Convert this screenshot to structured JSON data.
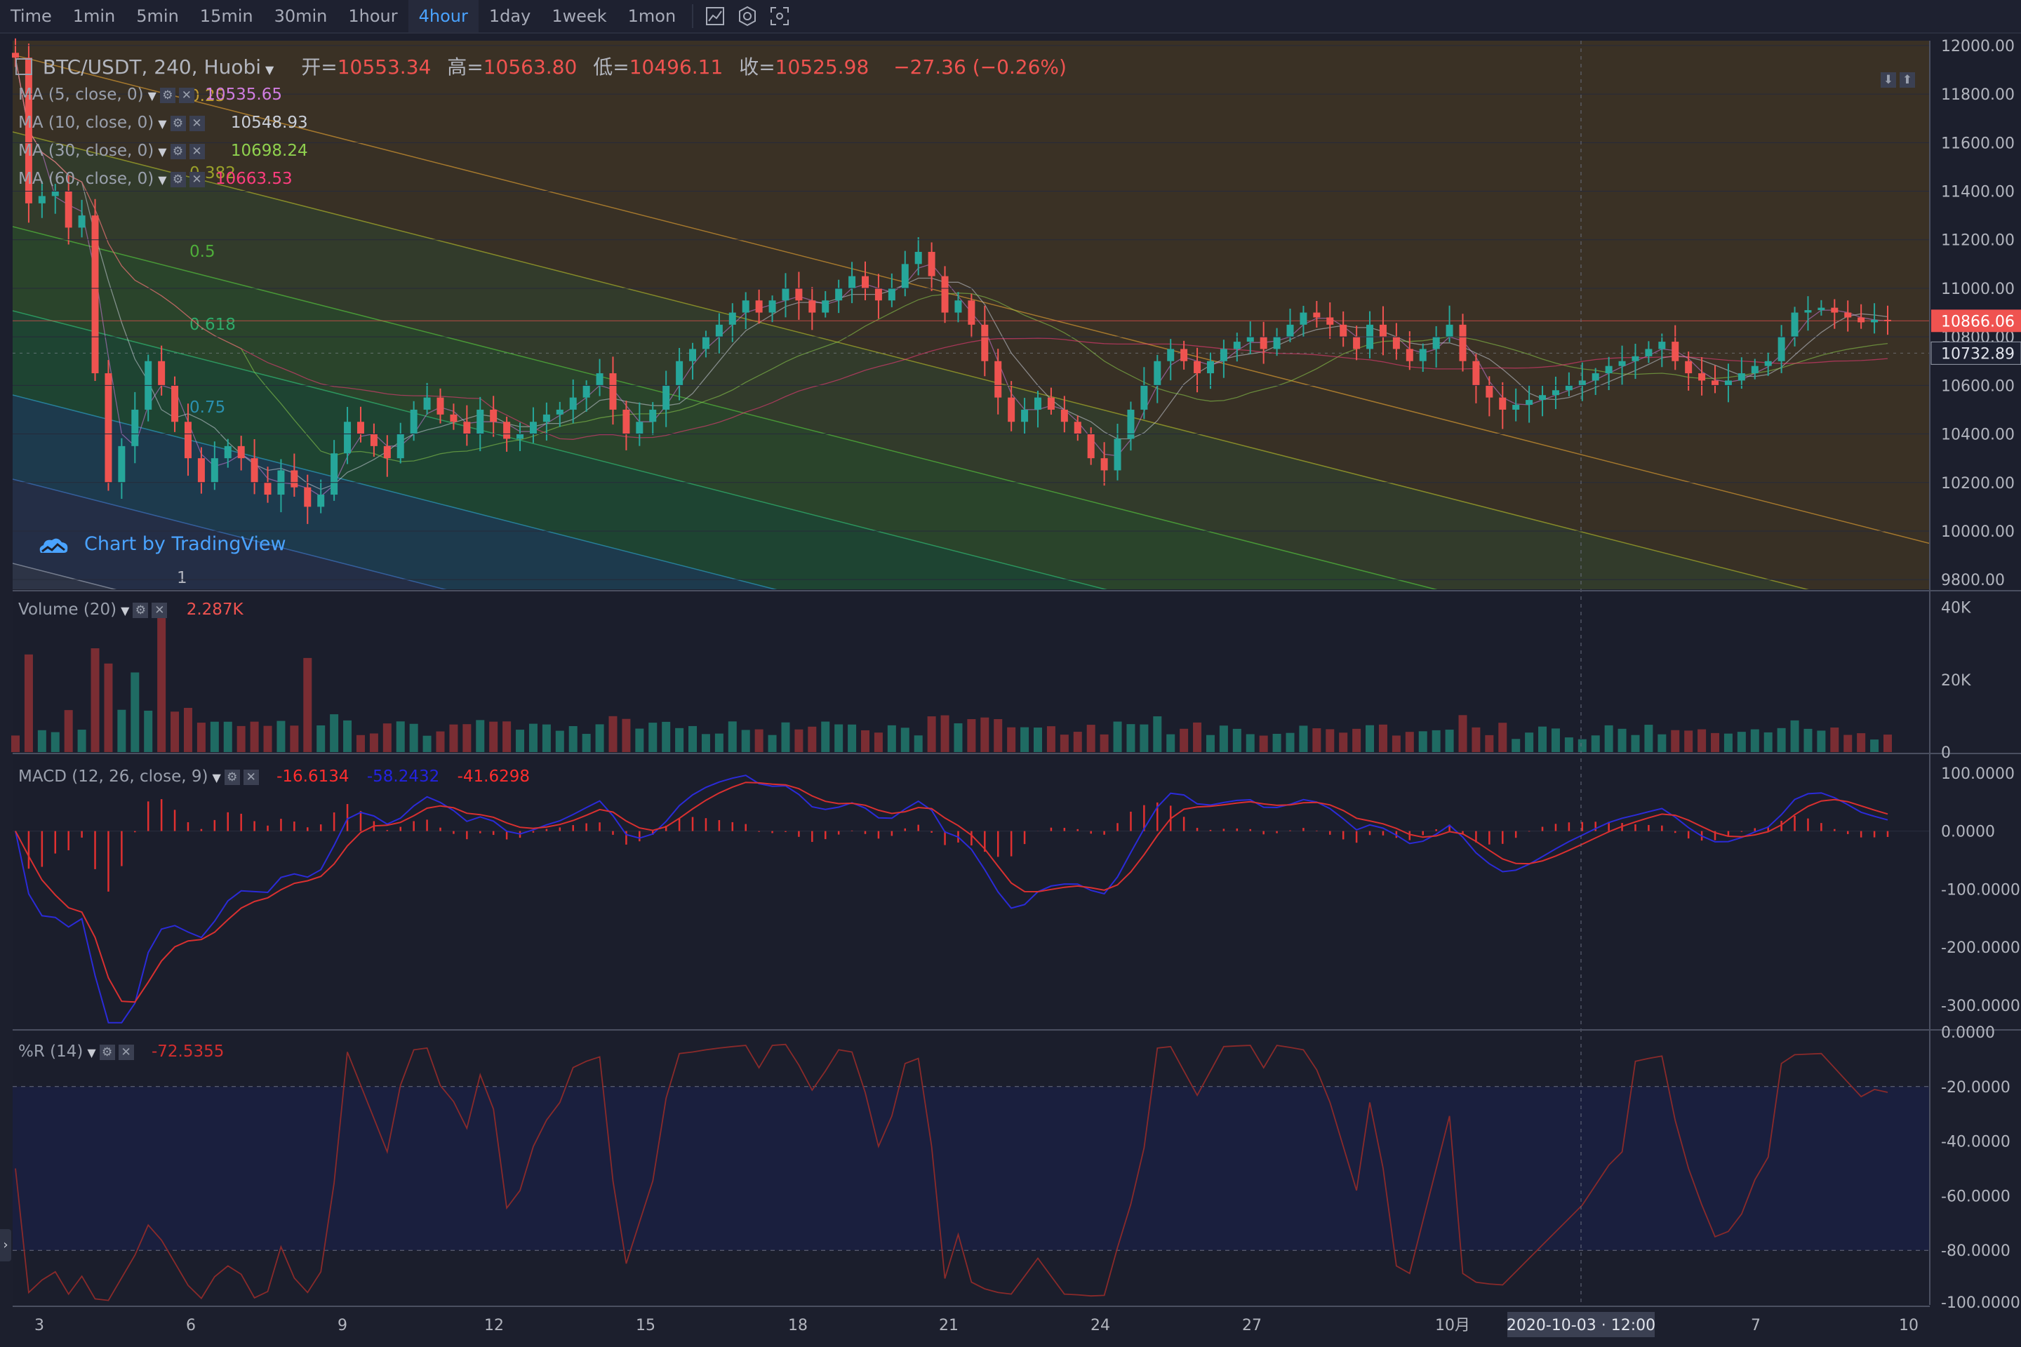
{
  "toolbar": {
    "intervals": [
      "Time",
      "1min",
      "5min",
      "15min",
      "30min",
      "1hour",
      "4hour",
      "1day",
      "1week",
      "1mon"
    ],
    "active": "4hour"
  },
  "header": {
    "symbol": "BTC/USDT, 240, Huobi",
    "open_label": "开=",
    "open": "10553.34",
    "high_label": "高=",
    "high": "10563.80",
    "low_label": "低=",
    "low": "10496.11",
    "close_label": "收=",
    "close": "10525.98",
    "change": "−27.36 (−0.26%)"
  },
  "ma_legend": [
    {
      "label": "MA (5, close, 0)",
      "value": "10535.65",
      "color": "#d07de0"
    },
    {
      "label": "MA (10, close, 0)",
      "value": "10548.93",
      "color": "#c9ced8"
    },
    {
      "label": "MA (30, close, 0)",
      "value": "10698.24",
      "color": "#8fd14f"
    },
    {
      "label": "MA (60, close, 0)",
      "value": "10663.53",
      "color": "#ff3d7f"
    }
  ],
  "watermark": "Chart by TradingView",
  "fib_levels": [
    "0.25",
    "0.382",
    "0.5",
    "0.618",
    "0.75",
    "1"
  ],
  "price_badges": {
    "last": "10866.06",
    "other": "10732.89"
  },
  "volume_legend": {
    "label": "Volume (20)",
    "value": "2.287K"
  },
  "macd_legend": {
    "label": "MACD (12, 26, close, 9)",
    "v1": "-16.6134",
    "v2": "-58.2432",
    "v3": "-41.6298"
  },
  "wr_legend": {
    "label": "%R (14)",
    "value": "-72.5355"
  },
  "price_axis": [
    "12000.00",
    "11800.00",
    "11600.00",
    "11400.00",
    "11200.00",
    "11000.00",
    "10800.00",
    "10600.00",
    "10400.00",
    "10200.00",
    "10000.00",
    "9800.00"
  ],
  "volume_axis": [
    "40K",
    "20K",
    "0"
  ],
  "macd_axis": [
    "100.0000",
    "0.0000",
    "-100.0000",
    "-200.0000",
    "-300.0000"
  ],
  "wr_axis": [
    "0.0000",
    "-20.0000",
    "-40.0000",
    "-60.0000",
    "-80.0000",
    "-100.0000"
  ],
  "time_axis": [
    "3",
    "6",
    "9",
    "12",
    "15",
    "18",
    "21",
    "24",
    "27",
    "10月",
    "4",
    "7",
    "10"
  ],
  "crosshair_label": "2020-10-03 · 12:00",
  "chart_data": {
    "type": "candlestick",
    "title": "BTC/USDT, 240, Huobi",
    "ylim": [
      9760,
      12020
    ],
    "close_path": [
      11950,
      11350,
      11380,
      11400,
      11250,
      11300,
      10650,
      10200,
      10350,
      10500,
      10700,
      10600,
      10450,
      10300,
      10200,
      10300,
      10350,
      10300,
      10200,
      10150,
      10250,
      10180,
      10100,
      10150,
      10320,
      10450,
      10400,
      10350,
      10300,
      10400,
      10500,
      10550,
      10480,
      10450,
      10400,
      10500,
      10450,
      10380,
      10400,
      10450,
      10480,
      10500,
      10550,
      10600,
      10650,
      10500,
      10400,
      10450,
      10500,
      10600,
      10700,
      10750,
      10800,
      10850,
      10900,
      10950,
      10900,
      10950,
      11000,
      10950,
      10900,
      10950,
      11000,
      11050,
      11000,
      10950,
      11000,
      11100,
      11150,
      11050,
      10900,
      10950,
      10850,
      10700,
      10550,
      10450,
      10500,
      10550,
      10500,
      10450,
      10400,
      10300,
      10250,
      10380,
      10500,
      10600,
      10700,
      10750,
      10700,
      10650,
      10700,
      10750,
      10780,
      10800,
      10750,
      10800,
      10850,
      10900,
      10880,
      10850,
      10800,
      10750,
      10850,
      10800,
      10750,
      10700,
      10750,
      10800,
      10850,
      10700,
      10600,
      10550,
      10500,
      10520,
      10540,
      10560,
      10580,
      10600,
      10620,
      10650,
      10680,
      10700,
      10720,
      10750,
      10780,
      10700,
      10650,
      10620,
      10600,
      10620,
      10650,
      10680,
      10700,
      10800,
      10900,
      10910,
      10920,
      10900,
      10880,
      10860,
      10870,
      10866
    ],
    "volume_range": [
      0,
      44000
    ],
    "macd_range": [
      -340,
      130
    ],
    "wr_range": [
      -100,
      0
    ],
    "wr_dashed_levels": [
      -20,
      -80
    ]
  }
}
